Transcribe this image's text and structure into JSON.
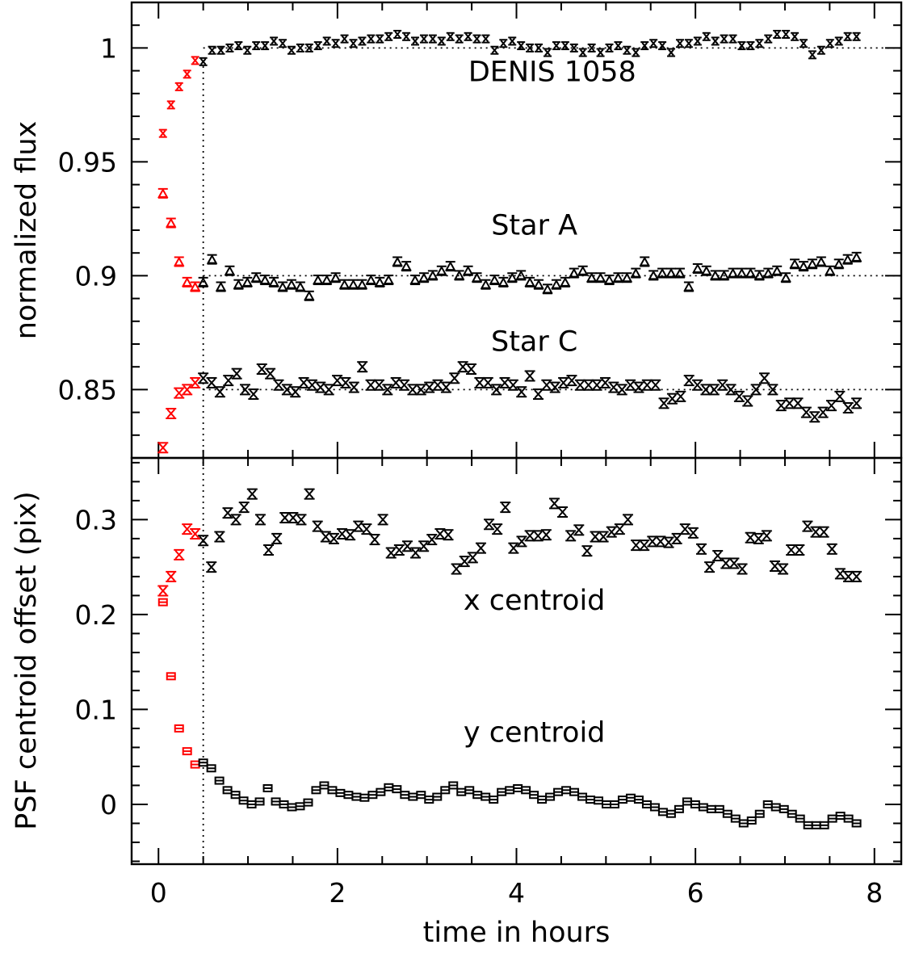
{
  "chart_data": [
    {
      "type": "scatter",
      "panel": "top",
      "xlabel": "time in hours",
      "ylabel": "normalized flux",
      "xlim": [
        -0.3,
        8.3
      ],
      "ylim": [
        0.82,
        1.02
      ],
      "xticks": [
        "0",
        "2",
        "4",
        "6",
        "8"
      ],
      "yticks": [
        "0.85",
        "0.9",
        "0.95",
        "1"
      ],
      "reference_lines": [
        1.0,
        0.9,
        0.85
      ],
      "vline_x": 0.5,
      "grid": false,
      "colors": {
        "early": "#ff0000",
        "main": "#000000"
      },
      "annotations": [
        {
          "text": "DENIS 1058",
          "x": 4.4,
          "y": 0.9855
        },
        {
          "text": "Star A",
          "x": 4.2,
          "y": 0.918
        },
        {
          "text": "Star C",
          "x": 4.2,
          "y": 0.867
        }
      ],
      "series": [
        {
          "label": "DENIS 1058",
          "marker": "x",
          "early": [
            [
              0.05,
              0.9625
            ],
            [
              0.14,
              0.975
            ],
            [
              0.23,
              0.983
            ],
            [
              0.32,
              0.9885
            ],
            [
              0.41,
              0.9945
            ]
          ],
          "values": [
            0.994,
            0.999,
            0.999,
            1.0,
            1.001,
            0.999,
            1.001,
            1.001,
            1.003,
            1.002,
            0.999,
            1.0,
            1.0,
            1.001,
            1.003,
            1.002,
            1.004,
            1.002,
            1.003,
            1.004,
            1.004,
            1.005,
            1.006,
            1.005,
            1.003,
            1.004,
            1.004,
            1.003,
            1.005,
            1.004,
            1.005,
            1.004,
            1.004,
            0.999,
            1.002,
            1.003,
            1.001,
            1.0,
            1.0,
            0.998,
            1.001,
            1.001,
            1.0,
            0.998,
            1.0,
            0.998,
            1.0,
            1.001,
            0.999,
            0.998,
            1.001,
            1.002,
            1.001,
            0.998,
            1.002,
            1.002,
            1.003,
            1.005,
            1.003,
            1.004,
            1.004,
            1.001,
            1.001,
            1.002,
            1.004,
            1.006,
            1.006,
            1.005,
            1.002,
            0.997,
            0.999,
            1.002,
            1.003,
            1.005,
            1.005
          ]
        },
        {
          "label": "Star A",
          "marker": "triangle",
          "early": [
            [
              0.05,
              0.936
            ],
            [
              0.14,
              0.923
            ],
            [
              0.23,
              0.906
            ],
            [
              0.32,
              0.897
            ],
            [
              0.41,
              0.895
            ]
          ],
          "values": [
            0.897,
            0.907,
            0.895,
            0.902,
            0.896,
            0.897,
            0.899,
            0.898,
            0.897,
            0.895,
            0.896,
            0.895,
            0.891,
            0.898,
            0.898,
            0.899,
            0.896,
            0.896,
            0.896,
            0.898,
            0.897,
            0.898,
            0.906,
            0.904,
            0.898,
            0.899,
            0.9,
            0.902,
            0.904,
            0.9,
            0.902,
            0.899,
            0.896,
            0.898,
            0.897,
            0.899,
            0.9,
            0.897,
            0.896,
            0.894,
            0.896,
            0.897,
            0.901,
            0.902,
            0.899,
            0.899,
            0.898,
            0.899,
            0.899,
            0.901,
            0.906,
            0.9,
            0.901,
            0.901,
            0.901,
            0.895,
            0.903,
            0.902,
            0.9,
            0.9,
            0.901,
            0.901,
            0.901,
            0.9,
            0.901,
            0.902,
            0.899,
            0.905,
            0.904,
            0.905,
            0.906,
            0.902,
            0.905,
            0.907,
            0.908
          ]
        },
        {
          "label": "Star C",
          "marker": "x-bar",
          "early": [
            [
              0.05,
              0.8245
            ],
            [
              0.14,
              0.8395
            ],
            [
              0.23,
              0.8485
            ],
            [
              0.32,
              0.85
            ],
            [
              0.41,
              0.853
            ]
          ],
          "values": [
            0.855,
            0.853,
            0.849,
            0.854,
            0.857,
            0.85,
            0.848,
            0.859,
            0.857,
            0.852,
            0.85,
            0.849,
            0.853,
            0.852,
            0.851,
            0.85,
            0.854,
            0.853,
            0.851,
            0.86,
            0.852,
            0.852,
            0.85,
            0.853,
            0.852,
            0.85,
            0.85,
            0.851,
            0.852,
            0.851,
            0.855,
            0.86,
            0.859,
            0.853,
            0.853,
            0.85,
            0.853,
            0.852,
            0.849,
            0.856,
            0.848,
            0.852,
            0.851,
            0.853,
            0.854,
            0.852,
            0.852,
            0.852,
            0.853,
            0.851,
            0.85,
            0.852,
            0.851,
            0.852,
            0.852,
            0.844,
            0.846,
            0.847,
            0.854,
            0.852,
            0.85,
            0.85,
            0.852,
            0.85,
            0.847,
            0.845,
            0.85,
            0.855,
            0.85,
            0.843,
            0.844,
            0.844,
            0.84,
            0.838,
            0.84,
            0.843,
            0.847,
            0.842,
            0.844
          ]
        }
      ]
    },
    {
      "type": "scatter",
      "panel": "bottom",
      "xlabel": "time in hours",
      "ylabel": "PSF centroid offset (pix)",
      "xlim": [
        -0.3,
        8.3
      ],
      "ylim": [
        -0.063,
        0.365
      ],
      "xticks": [
        "0",
        "2",
        "4",
        "6",
        "8"
      ],
      "yticks": [
        "0",
        "0.1",
        "0.2",
        "0.3"
      ],
      "vline_x": 0.5,
      "grid": false,
      "annotations": [
        {
          "text": "x centroid",
          "x": 4.2,
          "y": 0.205
        },
        {
          "text": "y centroid",
          "x": 4.2,
          "y": 0.066
        }
      ],
      "series": [
        {
          "label": "x centroid",
          "marker": "x-bar",
          "early": [
            [
              0.05,
              0.225
            ],
            [
              0.14,
              0.24
            ],
            [
              0.23,
              0.263
            ],
            [
              0.32,
              0.29
            ],
            [
              0.41,
              0.285
            ]
          ],
          "values": [
            0.278,
            0.25,
            0.282,
            0.307,
            0.3,
            0.313,
            0.327,
            0.3,
            0.268,
            0.28,
            0.302,
            0.302,
            0.3,
            0.327,
            0.293,
            0.282,
            0.28,
            0.285,
            0.284,
            0.293,
            0.29,
            0.279,
            0.3,
            0.265,
            0.268,
            0.272,
            0.265,
            0.272,
            0.279,
            0.285,
            0.284,
            0.248,
            0.256,
            0.26,
            0.27,
            0.295,
            0.29,
            0.313,
            0.27,
            0.277,
            0.283,
            0.283,
            0.284,
            0.317,
            0.308,
            0.283,
            0.289,
            0.267,
            0.282,
            0.282,
            0.287,
            0.29,
            0.3,
            0.273,
            0.273,
            0.277,
            0.277,
            0.276,
            0.28,
            0.29,
            0.286,
            0.269,
            0.25,
            0.262,
            0.254,
            0.254,
            0.248,
            0.281,
            0.28,
            0.283,
            0.251,
            0.248,
            0.268,
            0.268,
            0.293,
            0.287,
            0.287,
            0.269,
            0.243,
            0.24,
            0.24
          ]
        },
        {
          "label": "y centroid",
          "marker": "square",
          "early": [
            [
              0.05,
              0.213
            ],
            [
              0.14,
              0.135
            ],
            [
              0.23,
              0.08
            ],
            [
              0.32,
              0.056
            ],
            [
              0.41,
              0.042
            ]
          ],
          "values": [
            0.044,
            0.038,
            0.025,
            0.015,
            0.01,
            0.004,
            0.0,
            0.003,
            0.017,
            0.003,
            0.0,
            -0.003,
            -0.002,
            0.002,
            0.015,
            0.02,
            0.015,
            0.012,
            0.01,
            0.008,
            0.007,
            0.01,
            0.013,
            0.018,
            0.016,
            0.01,
            0.008,
            0.01,
            0.005,
            0.008,
            0.015,
            0.02,
            0.013,
            0.015,
            0.01,
            0.008,
            0.005,
            0.013,
            0.015,
            0.017,
            0.015,
            0.01,
            0.005,
            0.008,
            0.013,
            0.015,
            0.013,
            0.008,
            0.005,
            0.004,
            0.0,
            0.0,
            0.005,
            0.007,
            0.005,
            0.0,
            -0.003,
            -0.008,
            -0.01,
            -0.005,
            0.003,
            0.0,
            -0.003,
            -0.005,
            -0.005,
            -0.01,
            -0.015,
            -0.02,
            -0.017,
            -0.01,
            0.0,
            -0.003,
            -0.005,
            -0.01,
            -0.015,
            -0.022,
            -0.022,
            -0.022,
            -0.015,
            -0.012,
            -0.015,
            -0.02
          ]
        }
      ]
    }
  ]
}
